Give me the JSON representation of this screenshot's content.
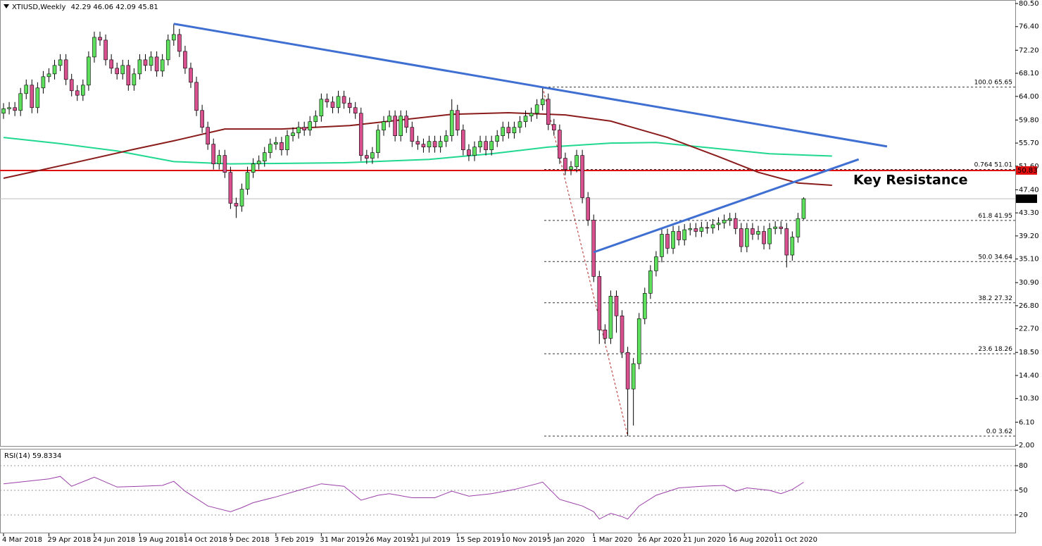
{
  "chart_data": [
    {
      "type": "candlestick",
      "symbol": "XTIUSD,Weekly",
      "categories": [
        "4 Mar 2018",
        null,
        null,
        null,
        null,
        null,
        null,
        null,
        "29 Apr 2018",
        null,
        null,
        null,
        null,
        null,
        null,
        null,
        "24 Jun 2018",
        null,
        null,
        null,
        null,
        null,
        null,
        null,
        "19 Aug 2018",
        null,
        null,
        null,
        null,
        null,
        null,
        null,
        "14 Oct 2018",
        null,
        null,
        null,
        null,
        null,
        null,
        null,
        "9 Dec 2018",
        null,
        null,
        null,
        null,
        null,
        null,
        null,
        "3 Feb 2019",
        null,
        null,
        null,
        null,
        null,
        null,
        null,
        "31 Mar 2019",
        null,
        null,
        null,
        null,
        null,
        null,
        null,
        "26 May 2019",
        null,
        null,
        null,
        null,
        null,
        null,
        null,
        "21 Jul 2019",
        null,
        null,
        null,
        null,
        null,
        null,
        null,
        "15 Sep 2019",
        null,
        null,
        null,
        null,
        null,
        null,
        null,
        "10 Nov 2019",
        null,
        null,
        null,
        null,
        null,
        null,
        null,
        "5 Jan 2020",
        null,
        null,
        null,
        null,
        null,
        null,
        null,
        "1 Mar 2020",
        null,
        null,
        null,
        null,
        null,
        null,
        null,
        "26 Apr 2020",
        null,
        null,
        null,
        null,
        null,
        null,
        null,
        "21 Jun 2020",
        null,
        null,
        null,
        null,
        null,
        null,
        null,
        "16 Aug 2020",
        null,
        null,
        null,
        null,
        null,
        null,
        null,
        "11 Oct 2020",
        null,
        null,
        null,
        null,
        null
      ],
      "open": [
        61,
        61.8,
        62,
        61.5,
        64.5,
        66,
        62,
        65.5,
        67.5,
        68,
        69.5,
        70.5,
        67,
        65,
        64.2,
        66,
        71,
        74.5,
        74,
        70.5,
        69,
        68,
        69.5,
        66,
        68,
        70.5,
        69.5,
        71,
        68.5,
        70.5,
        74,
        75,
        72,
        69,
        66.5,
        61.5,
        58.5,
        55.5,
        52,
        53.5,
        50.5,
        45,
        44.5,
        47.5,
        50.5,
        52,
        52.5,
        54,
        55.5,
        55.8,
        54.5,
        57,
        57.5,
        58.5,
        58,
        59.5,
        60.5,
        63.5,
        63,
        62,
        64,
        62.8,
        62,
        61,
        53.5,
        53,
        54,
        58,
        59.5,
        60.5,
        57,
        60.5,
        58.5,
        56,
        55.5,
        55,
        56,
        55,
        56,
        57,
        61.5,
        58,
        54.5,
        53.5,
        55,
        56,
        54.5,
        56,
        57,
        58.5,
        57.5,
        58.5,
        59.5,
        60.5,
        61,
        62.5,
        63.5,
        59,
        58,
        53,
        51,
        51.5,
        53.5,
        46,
        42,
        32,
        22.5,
        21,
        28.5,
        25,
        18.5,
        12,
        16.5,
        24.5,
        29,
        33,
        35.5,
        39.5,
        37,
        40,
        38.5,
        40.3,
        40.5,
        40,
        40.7,
        40.6,
        41.2,
        41.5,
        42,
        42.3,
        40.5,
        37.3,
        40.5,
        39.5,
        40,
        37.8,
        40.5,
        40.8,
        40.5,
        35.8,
        39,
        42.29
      ],
      "high": [
        62.8,
        63,
        63,
        65.5,
        67,
        67,
        66.5,
        68.5,
        69,
        70.5,
        71.5,
        71.5,
        68,
        66,
        67,
        72,
        75.5,
        75.5,
        75,
        71.5,
        70,
        70.5,
        70.5,
        69,
        71.5,
        71.5,
        72,
        72,
        71.5,
        75,
        76.9,
        76,
        73,
        70,
        67.5,
        62.5,
        59.5,
        56.5,
        54.5,
        54.5,
        51.5,
        46,
        48.5,
        51.5,
        53,
        53.5,
        55,
        56.5,
        56.8,
        56.8,
        58,
        58.5,
        59.5,
        59.5,
        60.5,
        61.5,
        64.5,
        64.5,
        64,
        65,
        65,
        63.8,
        63,
        62,
        54.5,
        55,
        59,
        60.5,
        61.5,
        61.5,
        61.5,
        61.5,
        59.5,
        57,
        56.5,
        57,
        57,
        57,
        58,
        63.5,
        62.5,
        59,
        55.5,
        56,
        57,
        57,
        57,
        58,
        59.5,
        59.5,
        59.5,
        60.5,
        61.5,
        62,
        63.5,
        65.65,
        64.5,
        60,
        59,
        54,
        52.5,
        54.5,
        54.5,
        47,
        43,
        33,
        23.5,
        29.5,
        29.5,
        26,
        19.5,
        17.5,
        25.5,
        30,
        34,
        36.5,
        40.5,
        40.5,
        41,
        41,
        41.3,
        41.5,
        41.5,
        41.7,
        41.7,
        42.2,
        42.5,
        43,
        43.3,
        43.3,
        41.5,
        41.5,
        41.5,
        41,
        41,
        41.5,
        41.8,
        41.8,
        41.5,
        40,
        43.3,
        46.06
      ],
      "low": [
        60,
        60.8,
        60.5,
        60.5,
        63.5,
        61,
        61,
        64.5,
        66.5,
        67,
        68.5,
        66,
        64,
        63.2,
        63.2,
        65,
        70,
        73,
        69.5,
        68,
        67,
        67,
        65,
        65,
        67,
        68.5,
        68.5,
        67.5,
        67.5,
        69.5,
        73,
        71,
        68,
        65.5,
        60.5,
        57.5,
        54.5,
        51,
        51,
        49.5,
        44,
        42.4,
        43.5,
        46.5,
        49.5,
        51,
        51.5,
        53,
        54.5,
        53.5,
        53.5,
        56,
        56.5,
        57,
        57,
        58.5,
        59.5,
        62,
        61,
        61,
        61.8,
        61,
        60,
        52.5,
        52,
        52,
        53,
        57,
        58.5,
        56,
        56,
        57.5,
        55,
        54.5,
        54,
        54,
        54,
        54,
        55,
        56,
        57,
        53.5,
        52.5,
        52.5,
        54,
        53.5,
        53.5,
        55,
        56,
        56.5,
        56.5,
        57.5,
        58.5,
        59.5,
        60,
        61.5,
        58,
        57,
        52,
        50,
        50,
        50.5,
        45,
        41,
        31,
        20,
        20,
        20,
        22,
        17.5,
        3.62,
        5.5,
        15.5,
        23.5,
        28,
        32,
        34.5,
        36,
        36,
        37.5,
        37.5,
        39.3,
        39,
        39,
        39.6,
        39.6,
        40.2,
        40.5,
        41,
        39.5,
        36.3,
        36.3,
        38.5,
        38.5,
        36.8,
        36.8,
        39.5,
        39.5,
        33.6,
        34.8,
        38,
        42.09
      ],
      "close": [
        61.8,
        62,
        61.5,
        64.5,
        66,
        62,
        65.5,
        67.5,
        68,
        69.5,
        70.5,
        67,
        65,
        64.2,
        66,
        71,
        74.5,
        74,
        70.5,
        69,
        68,
        69.5,
        66,
        68,
        70.5,
        69.5,
        71,
        68.5,
        70.5,
        74,
        75,
        72,
        69,
        66.5,
        61.5,
        58.5,
        55.5,
        52,
        53.5,
        50.5,
        45,
        44.5,
        47.5,
        50.5,
        52,
        52.5,
        54,
        55.5,
        55.8,
        54.5,
        57,
        57.5,
        58.5,
        58,
        59.5,
        60.5,
        63.5,
        63,
        62,
        64,
        62.8,
        62,
        61,
        53.5,
        53,
        54,
        58,
        59.5,
        60.5,
        57,
        60.5,
        58.5,
        56,
        55.5,
        55,
        56,
        55,
        56,
        57,
        61.5,
        58,
        54.5,
        53.5,
        55,
        56,
        54.5,
        56,
        57,
        58.5,
        57.5,
        58.5,
        59.5,
        60.5,
        61,
        62.5,
        63.5,
        59,
        58,
        53,
        51,
        51.5,
        53.5,
        46,
        42,
        32,
        22.5,
        21,
        28.5,
        25,
        18.5,
        12,
        16.5,
        24.5,
        29,
        33,
        35.5,
        39.5,
        37,
        40,
        38.5,
        40.3,
        40.5,
        40,
        40.7,
        40.6,
        41.2,
        41.5,
        42,
        42.3,
        40.5,
        37.3,
        40.5,
        39.5,
        40,
        37.8,
        40.5,
        40.8,
        40.5,
        35.8,
        39,
        42.29,
        45.81
      ],
      "up_color": "#5ee05e",
      "down_color": "#d9508f",
      "ylim": [
        2.0,
        80.5
      ],
      "yticks": [
        {
          "value": 80.5,
          "label": "80.50"
        },
        {
          "value": 76.4,
          "label": "76.40"
        },
        {
          "value": 72.2,
          "label": "72.20"
        },
        {
          "value": 68.1,
          "label": "68.10"
        },
        {
          "value": 64.0,
          "label": "64.00"
        },
        {
          "value": 59.8,
          "label": "59.80"
        },
        {
          "value": 55.7,
          "label": "55.70"
        },
        {
          "value": 51.6,
          "label": "51.60"
        },
        {
          "value": 47.4,
          "label": "47.40"
        },
        {
          "value": 43.3,
          "label": "43.30"
        },
        {
          "value": 39.2,
          "label": "39.20"
        },
        {
          "value": 35.1,
          "label": "35.10"
        },
        {
          "value": 30.9,
          "label": "30.90"
        },
        {
          "value": 26.8,
          "label": "26.80"
        },
        {
          "value": 22.7,
          "label": "22.70"
        },
        {
          "value": 18.5,
          "label": "18.50"
        },
        {
          "value": 14.4,
          "label": "14.40"
        },
        {
          "value": 10.3,
          "label": "10.30"
        },
        {
          "value": 6.1,
          "label": "6.10"
        },
        {
          "value": 2.0,
          "label": "2.00"
        }
      ],
      "series": [
        {
          "color": "#20d890",
          "x": [
            0,
            10,
            20,
            30,
            40,
            60,
            75,
            86,
            96,
            107,
            115,
            125,
            135,
            146
          ],
          "values": [
            56.7,
            55.6,
            54.3,
            52.4,
            52.0,
            52.2,
            52.8,
            53.8,
            55.0,
            55.7,
            55.8,
            54.8,
            53.8,
            53.4
          ]
        },
        {
          "color": "#8b1c1c",
          "x": [
            0,
            12,
            23,
            30,
            39,
            49,
            61,
            79,
            89,
            99,
            107,
            117,
            126,
            133,
            140,
            146
          ],
          "values": [
            49.45,
            52.1,
            54.6,
            56.1,
            58.2,
            58.2,
            58.8,
            60.8,
            61.1,
            60.7,
            59.6,
            56.7,
            53.3,
            50.5,
            48.6,
            48.2
          ]
        }
      ],
      "trendlines": [
        {
          "color": "#3f6fd1",
          "x": [
            30,
            155.7
          ],
          "values": [
            76.9,
            55.1
          ]
        },
        {
          "color": "#3f6fd1",
          "x": [
            104,
            150.7
          ],
          "values": [
            36.3,
            52.8
          ]
        }
      ],
      "swing": {
        "color": "#b22222",
        "x": [
          95,
          110
        ],
        "values": [
          65.65,
          3.62
        ]
      },
      "fib_levels": [
        {
          "ratio": "100.0",
          "value": 65.65
        },
        {
          "ratio": "0.764",
          "value": 51.01
        },
        {
          "ratio": "61.8",
          "value": 41.95
        },
        {
          "ratio": "50.0",
          "value": 34.64
        },
        {
          "ratio": "38.2",
          "value": 27.32
        },
        {
          "ratio": "23.6",
          "value": 18.26
        },
        {
          "ratio": "0.0",
          "value": 3.62
        }
      ],
      "hline": {
        "value": 50.83,
        "color": "#e01010"
      },
      "annotation": {
        "text": "Key Resistance",
        "color": "#22a83a"
      }
    },
    {
      "type": "line",
      "title": "RSI(14)",
      "x": [
        0,
        4,
        8,
        10,
        12,
        16,
        20,
        24,
        28,
        30,
        32,
        36,
        40,
        42,
        44,
        48,
        52,
        56,
        60,
        63,
        66,
        68,
        72,
        76,
        79,
        82,
        86,
        90,
        94,
        95,
        98,
        100,
        102,
        104,
        105,
        107,
        109,
        110,
        112,
        115,
        119,
        123,
        127,
        129,
        131,
        135,
        137,
        139,
        141
      ],
      "values": [
        58,
        61,
        64,
        67,
        55,
        66,
        54,
        55,
        56,
        61,
        49,
        31,
        24,
        29,
        35,
        42,
        50,
        58,
        55,
        38,
        44,
        46,
        41,
        41,
        49,
        43,
        46,
        51,
        58,
        60,
        39,
        35,
        31,
        24,
        15,
        22,
        18,
        15,
        31,
        44,
        53,
        55,
        56,
        49,
        53,
        50,
        46,
        51,
        59.8334
      ],
      "color": "#9a3fa8",
      "ylim": [
        0,
        100
      ],
      "yticks": [
        80,
        50,
        20
      ]
    }
  ]
}
